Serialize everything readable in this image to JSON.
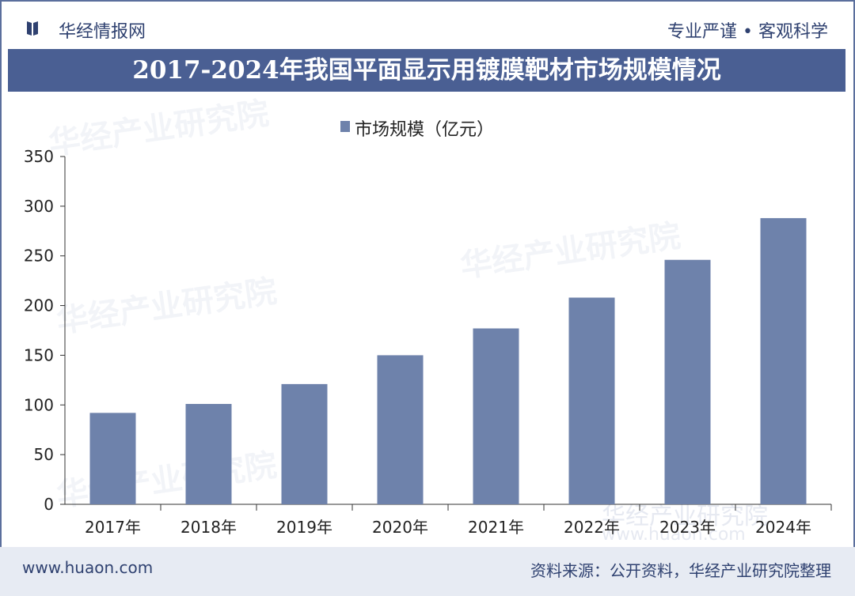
{
  "header": {
    "brand": "华经情报网",
    "slogan": "专业严谨 • 客观科学"
  },
  "colors": {
    "bar": "#6e82ab",
    "title_bg": "#4a5f93",
    "text_dark": "#2f4170"
  },
  "chart_data": {
    "type": "bar",
    "title": "2017-2024年我国平面显示用镀膜靶材市场规模情况",
    "categories": [
      "2017年",
      "2018年",
      "2019年",
      "2020年",
      "2021年",
      "2022年",
      "2023年",
      "2024年"
    ],
    "series": [
      {
        "name": "市场规模（亿元）",
        "values": [
          92,
          101,
          121,
          150,
          177,
          208,
          246,
          288
        ]
      }
    ],
    "yticks": [
      0,
      50,
      100,
      150,
      200,
      250,
      300,
      350
    ],
    "ylim": [
      0,
      350
    ],
    "grid": false,
    "legend": "top-center"
  },
  "watermark": {
    "text": "华经产业研究院",
    "url": "www.huaon.com"
  },
  "footer": {
    "site": "www.huaon.com",
    "source": "资料来源：公开资料，华经产业研究院整理"
  }
}
